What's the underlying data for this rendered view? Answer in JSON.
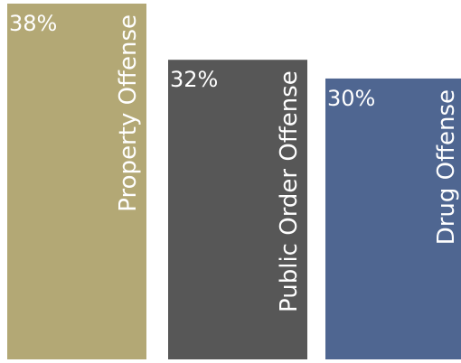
{
  "chart_data": {
    "type": "bar",
    "orientation": "vertical",
    "title": "",
    "xlabel": "",
    "ylabel": "",
    "grid": false,
    "legend": "none",
    "categories": [
      "Property Offense",
      "Public Order Offense",
      "Drug Offense"
    ],
    "values": [
      38,
      32,
      30
    ],
    "value_labels": [
      "38%",
      "32%",
      "30%"
    ],
    "colors": [
      "#b3a875",
      "#575757",
      "#4f6691"
    ],
    "ylim": [
      0,
      38
    ]
  }
}
